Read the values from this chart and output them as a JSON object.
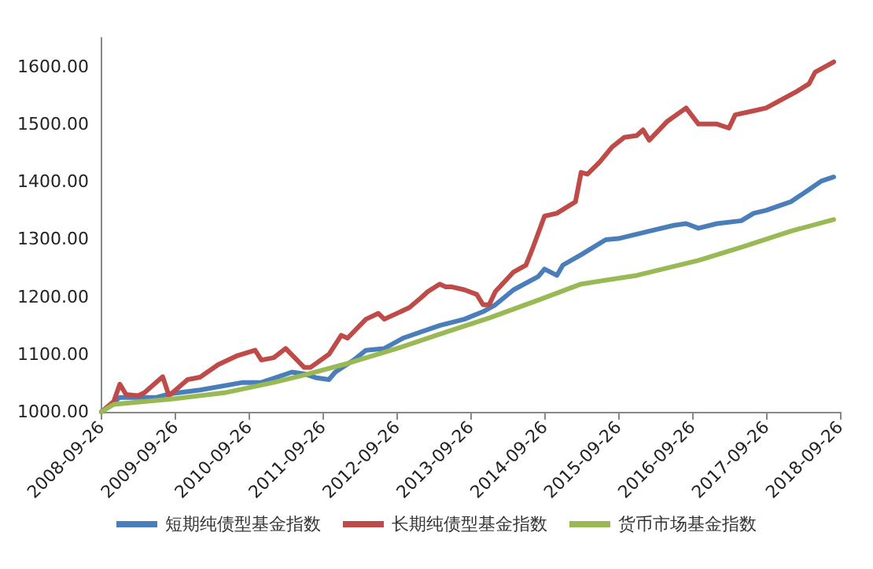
{
  "chart_data": {
    "type": "line",
    "xlim": [
      "2008-09-26",
      "2018-09-26"
    ],
    "xticks": [
      "2008-09-26",
      "2009-09-26",
      "2010-09-26",
      "2011-09-26",
      "2012-09-26",
      "2013-09-26",
      "2014-09-26",
      "2015-09-26",
      "2016-09-26",
      "2017-09-26",
      "2018-09-26"
    ],
    "ylim": [
      1000,
      1650
    ],
    "yticks": [
      {
        "value": 1000,
        "label": "1000.00"
      },
      {
        "value": 1100,
        "label": "1100.00"
      },
      {
        "value": 1200,
        "label": "1200.00"
      },
      {
        "value": 1300,
        "label": "1300.00"
      },
      {
        "value": 1400,
        "label": "1400.00"
      },
      {
        "value": 1500,
        "label": "1500.00"
      },
      {
        "value": 1600,
        "label": "1600.00"
      }
    ],
    "grid": false,
    "legend": "bottom",
    "marker": "none",
    "line_style": "solid",
    "series": [
      {
        "name": "短期纯债型基金指数",
        "color": "#4a7ebb",
        "x": [
          "2008-09-26",
          "2008-12-26",
          "2009-06-26",
          "2009-08-26",
          "2010-01-26",
          "2010-08-26",
          "2010-11-26",
          "2011-04-26",
          "2011-06-26",
          "2011-08-26",
          "2011-10-26",
          "2011-11-26",
          "2012-02-26",
          "2012-04-26",
          "2012-07-26",
          "2012-10-26",
          "2013-04-26",
          "2013-08-26",
          "2013-11-26",
          "2014-01-26",
          "2014-04-26",
          "2014-08-26",
          "2014-09-26",
          "2014-11-26",
          "2014-12-26",
          "2015-03-26",
          "2015-07-26",
          "2015-09-26",
          "2016-02-26",
          "2016-06-26",
          "2016-08-26",
          "2016-10-26",
          "2017-01-26",
          "2017-05-26",
          "2017-07-26",
          "2017-09-26",
          "2018-01-26",
          "2018-04-26",
          "2018-06-26",
          "2018-08-26"
        ],
        "values": [
          1000,
          1025,
          1025,
          1031,
          1038,
          1051,
          1051,
          1069,
          1066,
          1059,
          1056,
          1069,
          1090,
          1107,
          1110,
          1128,
          1150,
          1161,
          1174,
          1186,
          1212,
          1235,
          1248,
          1237,
          1255,
          1273,
          1299,
          1301,
          1314,
          1324,
          1327,
          1319,
          1327,
          1332,
          1345,
          1350,
          1365,
          1386,
          1401,
          1408
        ]
      },
      {
        "name": "长期纯债型基金指数",
        "color": "#be4b48",
        "x": [
          "2008-09-26",
          "2008-11-26",
          "2008-12-26",
          "2009-01-26",
          "2009-03-26",
          "2009-04-26",
          "2009-07-26",
          "2009-08-26",
          "2009-11-26",
          "2010-01-26",
          "2010-04-26",
          "2010-07-26",
          "2010-10-26",
          "2010-11-26",
          "2011-01-26",
          "2011-03-26",
          "2011-06-26",
          "2011-07-26",
          "2011-10-26",
          "2011-12-26",
          "2012-01-26",
          "2012-04-26",
          "2012-06-26",
          "2012-07-26",
          "2012-11-26",
          "2013-01-26",
          "2013-02-26",
          "2013-04-26",
          "2013-05-26",
          "2013-06-26",
          "2013-08-26",
          "2013-10-26",
          "2013-11-26",
          "2013-12-26",
          "2014-01-26",
          "2014-04-26",
          "2014-06-26",
          "2014-07-26",
          "2014-09-26",
          "2014-11-26",
          "2015-02-26",
          "2015-03-26",
          "2015-04-26",
          "2015-06-26",
          "2015-08-26",
          "2015-10-26",
          "2015-12-26",
          "2016-01-26",
          "2016-02-26",
          "2016-05-26",
          "2016-08-26",
          "2016-10-26",
          "2017-01-26",
          "2017-03-26",
          "2017-04-26",
          "2017-07-26",
          "2017-09-26",
          "2018-02-26",
          "2018-04-26",
          "2018-05-26",
          "2018-08-26"
        ],
        "values": [
          1000,
          1018,
          1048,
          1030,
          1028,
          1033,
          1061,
          1028,
          1056,
          1060,
          1082,
          1097,
          1107,
          1090,
          1094,
          1110,
          1077,
          1077,
          1100,
          1133,
          1128,
          1161,
          1171,
          1161,
          1181,
          1199,
          1209,
          1222,
          1217,
          1217,
          1212,
          1204,
          1186,
          1186,
          1209,
          1243,
          1255,
          1281,
          1340,
          1345,
          1365,
          1416,
          1413,
          1434,
          1460,
          1477,
          1480,
          1490,
          1472,
          1505,
          1528,
          1500,
          1500,
          1493,
          1516,
          1523,
          1528,
          1557,
          1570,
          1590,
          1608
        ]
      },
      {
        "name": "货币市场基金指数",
        "color": "#98b954",
        "x": [
          "2008-09-26",
          "2008-11-26",
          "2009-09-26",
          "2010-05-26",
          "2011-01-26",
          "2011-06-26",
          "2012-01-26",
          "2012-09-26",
          "2013-04-26",
          "2013-12-26",
          "2014-08-26",
          "2015-03-26",
          "2015-12-26",
          "2016-10-26",
          "2017-05-26",
          "2018-01-26",
          "2018-08-26"
        ],
        "values": [
          1000,
          1013,
          1023,
          1033,
          1051,
          1064,
          1084,
          1110,
          1135,
          1163,
          1194,
          1222,
          1237,
          1263,
          1286,
          1314,
          1334
        ]
      }
    ]
  }
}
